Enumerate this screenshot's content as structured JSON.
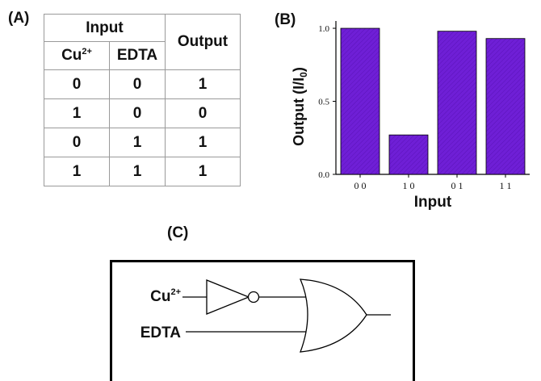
{
  "panels": {
    "a": "(A)",
    "b": "(B)",
    "c": "(C)"
  },
  "table": {
    "group_header": "Input",
    "cu_base": "Cu",
    "cu_sup": "2+",
    "edta": "EDTA",
    "output": "Output",
    "rows": [
      [
        "0",
        "0",
        "1"
      ],
      [
        "1",
        "0",
        "0"
      ],
      [
        "0",
        "1",
        "1"
      ],
      [
        "1",
        "1",
        "1"
      ]
    ]
  },
  "chart_data": {
    "type": "bar",
    "categories": [
      "0 0",
      "1 0",
      "0 1",
      "1 1"
    ],
    "values": [
      1.0,
      0.27,
      0.98,
      0.93
    ],
    "xlabel": "Input",
    "ylabel": "Output (I/I",
    "ylabel_sub": "0",
    "ylabel_end": ")",
    "ylim": [
      0,
      1.05
    ],
    "yticks": [
      0.0,
      0.5,
      1.0
    ],
    "ytick_labels": [
      "0.0",
      "0.5",
      "1.0"
    ],
    "grid": false,
    "bar_color": "#6f1fd6"
  },
  "diagram": {
    "cu_base": "Cu",
    "cu_sup": "2+",
    "edta": "EDTA"
  }
}
